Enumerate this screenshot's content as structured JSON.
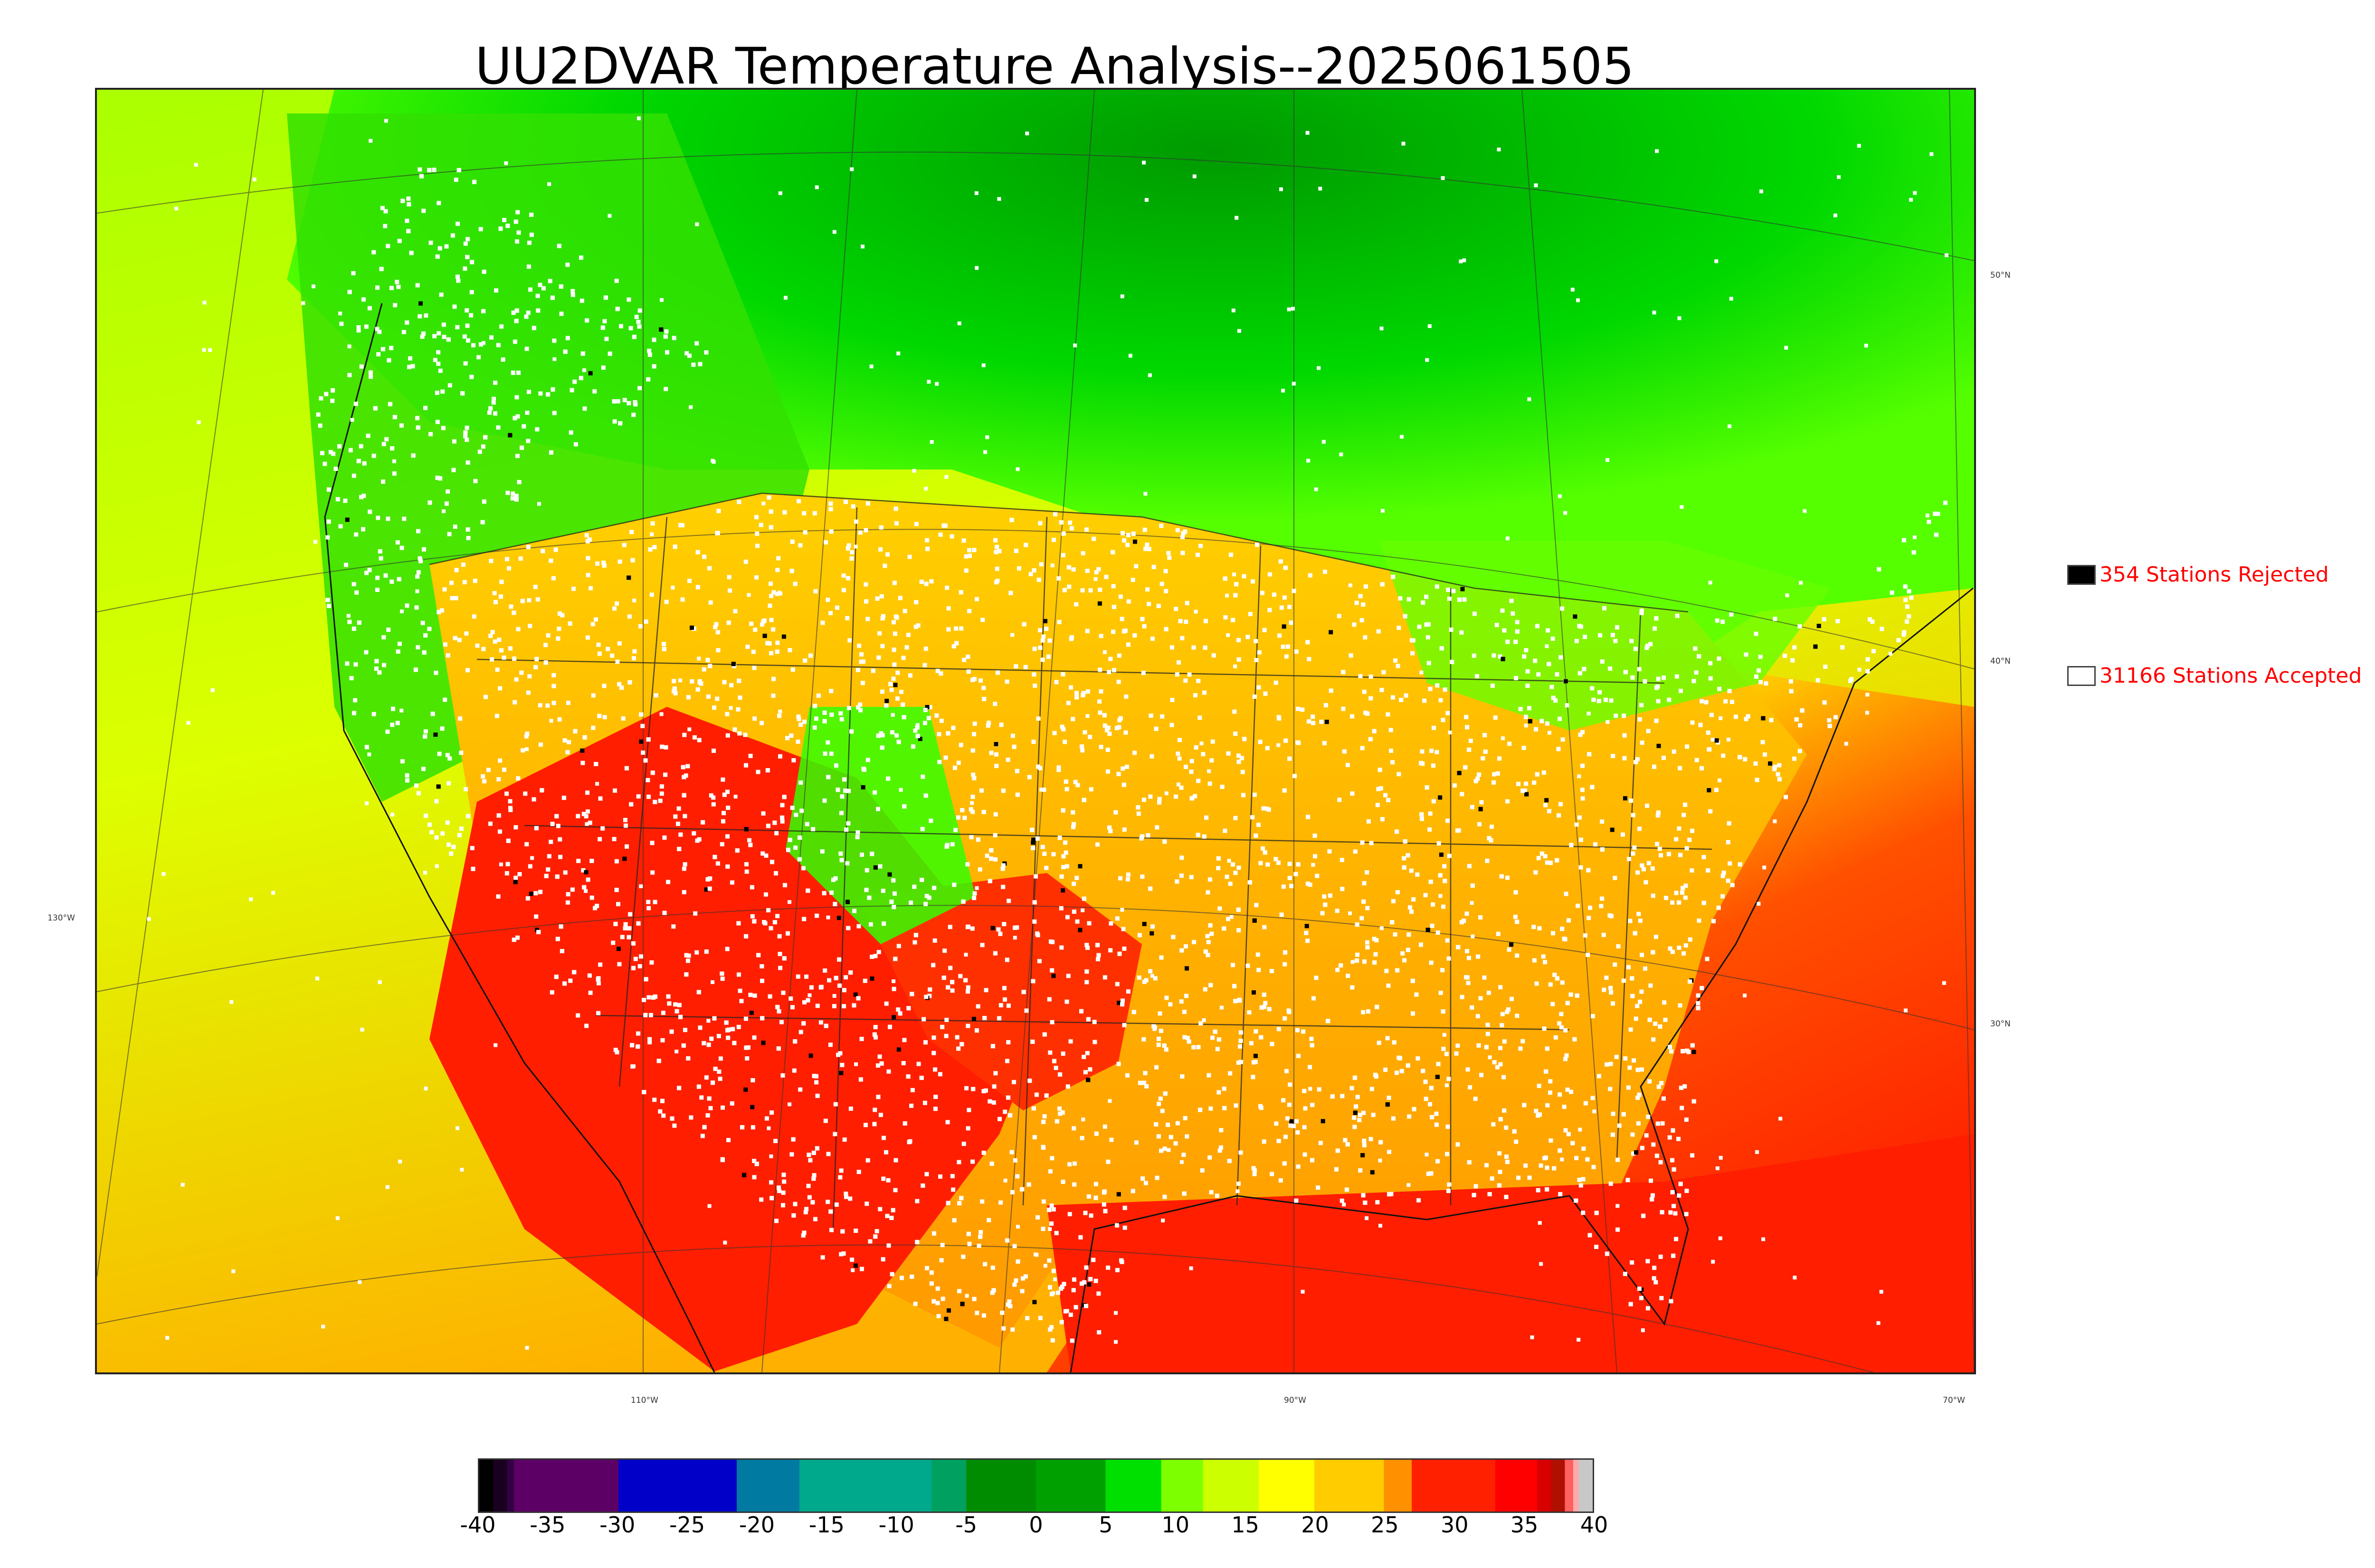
{
  "title": "UU2DVAR Temperature Analysis--2025061505",
  "legend": {
    "rejected": {
      "label": "354 Stations Rejected",
      "swatch_color": "#000000"
    },
    "accepted": {
      "label": "31166 Stations Accepted",
      "swatch_color": "#ffffff"
    }
  },
  "graticule": {
    "latitude_labels": [
      "50°N",
      "40°N",
      "30°N"
    ],
    "longitude_labels": [
      "130°W",
      "110°W",
      "90°W",
      "70°W"
    ]
  },
  "colorbar": {
    "ticks": [
      "-40",
      "-35",
      "-30",
      "-25",
      "-20",
      "-15",
      "-10",
      "-5",
      "0",
      "5",
      "10",
      "15",
      "20",
      "25",
      "30",
      "35",
      "40"
    ],
    "min": -40,
    "max": 40,
    "stops": [
      {
        "v": -40,
        "c": "#000000"
      },
      {
        "v": -39,
        "c": "#1a0020"
      },
      {
        "v": -38,
        "c": "#330044"
      },
      {
        "v": -37.5,
        "c": "#5c0066"
      },
      {
        "v": -30.5,
        "c": "#5c0066"
      },
      {
        "v": -30,
        "c": "#0000c8"
      },
      {
        "v": -22,
        "c": "#0000c8"
      },
      {
        "v": -21.5,
        "c": "#007aa0"
      },
      {
        "v": -17.5,
        "c": "#007aa0"
      },
      {
        "v": -17,
        "c": "#00a88c"
      },
      {
        "v": -8,
        "c": "#00a88c"
      },
      {
        "v": -7.5,
        "c": "#00a060"
      },
      {
        "v": -5,
        "c": "#008c00"
      },
      {
        "v": 0,
        "c": "#00a000"
      },
      {
        "v": 5,
        "c": "#00e000"
      },
      {
        "v": 9,
        "c": "#7dff00"
      },
      {
        "v": 12,
        "c": "#ccff00"
      },
      {
        "v": 16,
        "c": "#ffff00"
      },
      {
        "v": 20,
        "c": "#ffcc00"
      },
      {
        "v": 25,
        "c": "#ff9000"
      },
      {
        "v": 27,
        "c": "#ff2000"
      },
      {
        "v": 33,
        "c": "#ff0000"
      },
      {
        "v": 36,
        "c": "#d80000"
      },
      {
        "v": 37,
        "c": "#b01000"
      },
      {
        "v": 38,
        "c": "#ff6060"
      },
      {
        "v": 38.6,
        "c": "#ffaaaa"
      },
      {
        "v": 39,
        "c": "#c8c8c8"
      },
      {
        "v": 40,
        "c": "#d8d8d8"
      }
    ]
  },
  "map_colors": {
    "cool_north": "#00c800",
    "mild": "#ccff00",
    "warm": "#ffb000",
    "hot": "#ff1e00",
    "station_accepted": "#ffffff",
    "station_rejected": "#000000"
  }
}
